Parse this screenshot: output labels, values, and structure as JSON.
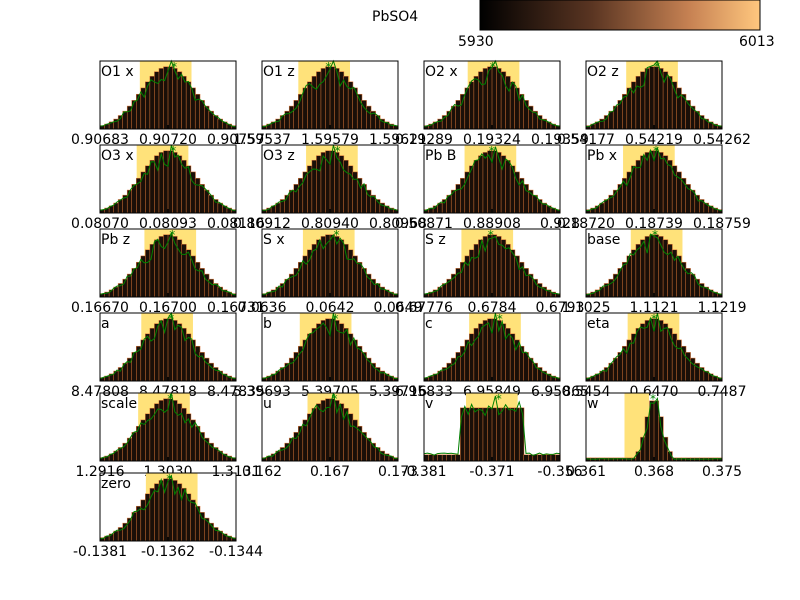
{
  "title": "PbSO4",
  "colorbar": {
    "min_label": "5930",
    "max_label": "6013",
    "cmap": "copper"
  },
  "colors": {
    "bar_dark": "#1a0f08",
    "bar_edge": "#e07a3a",
    "band": "#ffe27a",
    "trace": "#008000"
  },
  "chart_data": [
    {
      "type": "bar",
      "label": "O1 x",
      "ticks": [
        "0.90683",
        "0.90720",
        "0.90757"
      ]
    },
    {
      "type": "bar",
      "label": "O1 z",
      "ticks": [
        "1.59537",
        "1.59579",
        "1.59621"
      ]
    },
    {
      "type": "bar",
      "label": "O2 x",
      "ticks": [
        "0.19289",
        "0.19324",
        "0.19359"
      ]
    },
    {
      "type": "bar",
      "label": "O2 z",
      "ticks": [
        "0.54177",
        "0.54219",
        "0.54262"
      ]
    },
    {
      "type": "bar",
      "label": "O3 x",
      "ticks": [
        "0.08070",
        "0.08093",
        "0.08116"
      ]
    },
    {
      "type": "bar",
      "label": "O3 z",
      "ticks": [
        "0.80912",
        "0.80940",
        "0.80968"
      ]
    },
    {
      "type": "bar",
      "label": "Pb B",
      "ticks": [
        "0.50871",
        "0.88908",
        "0.928"
      ]
    },
    {
      "type": "bar",
      "label": "Pb x",
      "ticks": [
        "0.18720",
        "0.18739",
        "0.18759"
      ]
    },
    {
      "type": "bar",
      "label": "Pb z",
      "ticks": [
        "0.16670",
        "0.16700",
        "0.16731"
      ]
    },
    {
      "type": "bar",
      "label": "S x",
      "ticks": [
        "0.0636",
        "0.0642",
        "0.0649"
      ]
    },
    {
      "type": "bar",
      "label": "S z",
      "ticks": [
        "0.67776",
        "0.6784",
        "0.6793"
      ]
    },
    {
      "type": "bar",
      "label": "base",
      "ticks": [
        "1.1025",
        "1.1121",
        "1.1219"
      ]
    },
    {
      "type": "bar",
      "label": "a",
      "ticks": [
        "8.47808",
        "8.47818",
        "8.47835"
      ]
    },
    {
      "type": "bar",
      "label": "b",
      "ticks": [
        "5.39693",
        "5.39705",
        "5.39716"
      ]
    },
    {
      "type": "bar",
      "label": "c",
      "ticks": [
        "6.95833",
        "6.95849",
        "6.95865"
      ]
    },
    {
      "type": "bar",
      "label": "eta",
      "ticks": [
        "0.5454",
        "0.6470",
        "0.7487"
      ]
    },
    {
      "type": "bar",
      "label": "scale",
      "ticks": [
        "1.2916",
        "1.3030",
        "1.3131"
      ]
    },
    {
      "type": "bar",
      "label": "u",
      "ticks": [
        "0.162",
        "0.167",
        "0.173"
      ]
    },
    {
      "type": "bar",
      "label": "v",
      "ticks": [
        "-0.381",
        "-0.371",
        "-0.356"
      ]
    },
    {
      "type": "bar",
      "label": "w",
      "ticks": [
        "0.361",
        "0.368",
        "0.375"
      ]
    },
    {
      "type": "bar",
      "label": "zero",
      "ticks": [
        "-0.1381",
        "-0.1362",
        "-0.1344"
      ]
    }
  ]
}
